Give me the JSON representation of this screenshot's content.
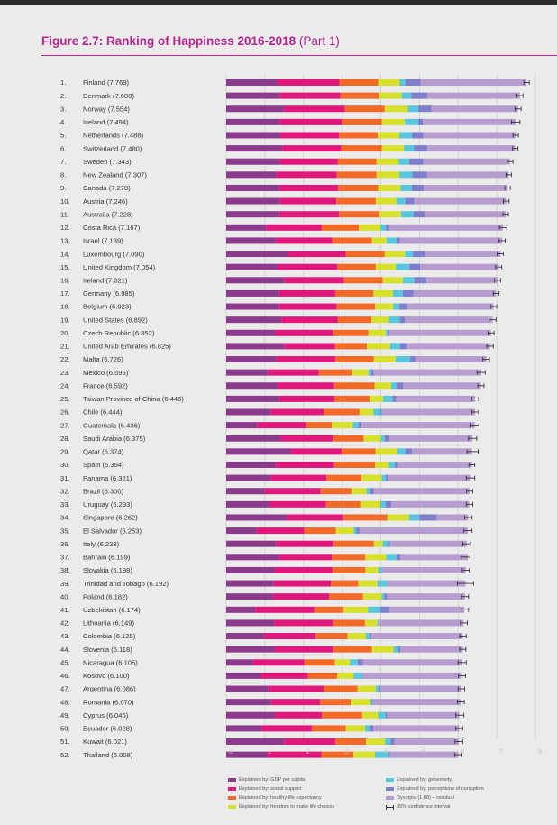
{
  "figure": {
    "title": "Figure 2.7: Ranking of Happiness 2016-2018",
    "part": "(Part 1)"
  },
  "colors": {
    "gdp": "#8c3a8c",
    "social": "#e0187c",
    "health": "#f36a28",
    "freedom": "#d7e02a",
    "generosity": "#58c7dd",
    "corruption": "#7e7ecc",
    "dystopia": "#b79ccf",
    "ci": "#333333",
    "gridline": "#cfcfcf",
    "title": "#b5268f"
  },
  "legend": [
    {
      "key": "gdp",
      "label": "Explained by: GDP per capita"
    },
    {
      "key": "social",
      "label": "Explained by: social support"
    },
    {
      "key": "health",
      "label": "Explained by: healthy life expectancy"
    },
    {
      "key": "freedom",
      "label": "Explained by: freedom to make life choices"
    },
    {
      "key": "generosity",
      "label": "Explained by: generosity"
    },
    {
      "key": "corruption",
      "label": "Explained by: perceptions of corruption"
    },
    {
      "key": "dystopia",
      "label": "Dystopia (1.88) + residual"
    },
    {
      "key": "ci",
      "label": "95% confidence interval"
    }
  ],
  "chart_data": {
    "type": "bar",
    "stacked": true,
    "orientation": "horizontal",
    "xlim": [
      0,
      8
    ],
    "xticks": [
      "0",
      "1",
      "2",
      "3",
      "4",
      "5",
      "6",
      "7",
      "8"
    ],
    "grid": true,
    "component_order": [
      "gdp",
      "social",
      "health",
      "freedom",
      "generosity",
      "corruption",
      "dystopia"
    ],
    "rows": [
      {
        "rank": "1.",
        "label": "Finland (7.769)",
        "score": 7.769,
        "parts": [
          1.34,
          1.59,
          1.0,
          0.56,
          0.15,
          0.39,
          2.74
        ],
        "ci": [
          7.7,
          7.84
        ]
      },
      {
        "rank": "2.",
        "label": "Denmark (7.600)",
        "score": 7.6,
        "parts": [
          1.38,
          1.57,
          1.0,
          0.59,
          0.25,
          0.41,
          2.4
        ],
        "ci": [
          7.52,
          7.68
        ]
      },
      {
        "rank": "3.",
        "label": "Norway (7.554)",
        "score": 7.554,
        "parts": [
          1.49,
          1.58,
          1.03,
          0.6,
          0.27,
          0.34,
          2.24
        ],
        "ci": [
          7.47,
          7.63
        ]
      },
      {
        "rank": "4.",
        "label": "Iceland (7.494)",
        "score": 7.494,
        "parts": [
          1.38,
          1.62,
          1.03,
          0.59,
          0.35,
          0.12,
          2.4
        ],
        "ci": [
          7.38,
          7.6
        ]
      },
      {
        "rank": "5.",
        "label": "Netherlands (7.488)",
        "score": 7.488,
        "parts": [
          1.4,
          1.52,
          1.0,
          0.56,
          0.32,
          0.3,
          2.39
        ],
        "ci": [
          7.42,
          7.56
        ]
      },
      {
        "rank": "6.",
        "label": "Switzerland (7.480)",
        "score": 7.48,
        "parts": [
          1.45,
          1.53,
          1.05,
          0.57,
          0.26,
          0.34,
          2.28
        ],
        "ci": [
          7.41,
          7.55
        ]
      },
      {
        "rank": "7.",
        "label": "Sweden (7.343)",
        "score": 7.343,
        "parts": [
          1.39,
          1.49,
          1.01,
          0.57,
          0.27,
          0.37,
          2.24
        ],
        "ci": [
          7.27,
          7.42
        ]
      },
      {
        "rank": "8.",
        "label": "New Zealand (7.307)",
        "score": 7.307,
        "parts": [
          1.3,
          1.56,
          1.03,
          0.59,
          0.33,
          0.38,
          2.12
        ],
        "ci": [
          7.24,
          7.38
        ]
      },
      {
        "rank": "9.",
        "label": "Canada (7.278)",
        "score": 7.278,
        "parts": [
          1.37,
          1.52,
          1.04,
          0.58,
          0.29,
          0.31,
          2.17
        ],
        "ci": [
          7.21,
          7.35
        ]
      },
      {
        "rank": "10.",
        "label": "Austria (7.246)",
        "score": 7.246,
        "parts": [
          1.38,
          1.47,
          1.02,
          0.53,
          0.24,
          0.23,
          2.37
        ],
        "ci": [
          7.17,
          7.32
        ]
      },
      {
        "rank": "11.",
        "label": "Australia (7.228)",
        "score": 7.228,
        "parts": [
          1.37,
          1.55,
          1.04,
          0.56,
          0.33,
          0.29,
          2.09
        ],
        "ci": [
          7.16,
          7.3
        ]
      },
      {
        "rank": "12.",
        "label": "Costa Rica (7.167)",
        "score": 7.167,
        "parts": [
          1.03,
          1.44,
          0.96,
          0.56,
          0.14,
          0.09,
          2.94
        ],
        "ci": [
          7.07,
          7.26
        ]
      },
      {
        "rank": "13.",
        "label": "Israel (7.139)",
        "score": 7.139,
        "parts": [
          1.28,
          1.46,
          1.03,
          0.38,
          0.26,
          0.08,
          2.65
        ],
        "ci": [
          7.06,
          7.22
        ]
      },
      {
        "rank": "14.",
        "label": "Luxembourg (7.090)",
        "score": 7.09,
        "parts": [
          1.61,
          1.48,
          1.01,
          0.53,
          0.2,
          0.32,
          1.95
        ],
        "ci": [
          7.01,
          7.17
        ]
      },
      {
        "rank": "15.",
        "label": "United Kingdom (7.054)",
        "score": 7.054,
        "parts": [
          1.33,
          1.54,
          1.0,
          0.52,
          0.35,
          0.28,
          2.03
        ],
        "ci": [
          6.97,
          7.13
        ]
      },
      {
        "rank": "16.",
        "label": "Ireland (7.021)",
        "score": 7.021,
        "parts": [
          1.5,
          1.55,
          1.0,
          0.52,
          0.3,
          0.31,
          1.85
        ],
        "ci": [
          6.94,
          7.1
        ]
      },
      {
        "rank": "17.",
        "label": "Germany (6.985)",
        "score": 6.985,
        "parts": [
          1.37,
          1.45,
          0.99,
          0.5,
          0.26,
          0.27,
          2.14
        ],
        "ci": [
          6.91,
          7.06
        ]
      },
      {
        "rank": "18.",
        "label": "Belgium (6.923)",
        "score": 6.923,
        "parts": [
          1.36,
          1.5,
          0.99,
          0.47,
          0.16,
          0.21,
          2.23
        ],
        "ci": [
          6.85,
          7.0
        ]
      },
      {
        "rank": "19.",
        "label": "United States (6.892)",
        "score": 6.892,
        "parts": [
          1.43,
          1.46,
          0.87,
          0.45,
          0.28,
          0.13,
          2.27
        ],
        "ci": [
          6.8,
          6.98
        ]
      },
      {
        "rank": "20.",
        "label": "Czech Republic (6.852)",
        "score": 6.852,
        "parts": [
          1.27,
          1.49,
          0.92,
          0.45,
          0.05,
          0.04,
          2.63
        ],
        "ci": [
          6.77,
          6.93
        ]
      },
      {
        "rank": "21.",
        "label": "United Arab Emirates (6.825)",
        "score": 6.825,
        "parts": [
          1.5,
          1.31,
          0.83,
          0.6,
          0.26,
          0.18,
          2.14
        ],
        "ci": [
          6.74,
          6.91
        ]
      },
      {
        "rank": "22.",
        "label": "Malta (6.726)",
        "score": 6.726,
        "parts": [
          1.3,
          1.52,
          1.0,
          0.56,
          0.38,
          0.15,
          1.82
        ],
        "ci": [
          6.64,
          6.81
        ]
      },
      {
        "rank": "23.",
        "label": "Mexico (6.595)",
        "score": 6.595,
        "parts": [
          1.07,
          1.32,
          0.86,
          0.43,
          0.07,
          0.07,
          2.78
        ],
        "ci": [
          6.49,
          6.7
        ]
      },
      {
        "rank": "24.",
        "label": "France (6.592)",
        "score": 6.592,
        "parts": [
          1.32,
          1.47,
          1.05,
          0.43,
          0.13,
          0.18,
          2.01
        ],
        "ci": [
          6.51,
          6.67
        ]
      },
      {
        "rank": "25.",
        "label": "Taiwan Province of China (6.446)",
        "score": 6.446,
        "parts": [
          1.37,
          1.43,
          0.91,
          0.35,
          0.24,
          0.1,
          2.04
        ],
        "ci": [
          6.36,
          6.53
        ]
      },
      {
        "rank": "26.",
        "label": "Chile (6.444)",
        "score": 6.444,
        "parts": [
          1.16,
          1.37,
          0.92,
          0.36,
          0.19,
          0.03,
          2.41
        ],
        "ci": [
          6.36,
          6.53
        ]
      },
      {
        "rank": "27.",
        "label": "Guatemala (6.436)",
        "score": 6.436,
        "parts": [
          0.8,
          1.27,
          0.66,
          0.54,
          0.15,
          0.08,
          2.93
        ],
        "ci": [
          6.33,
          6.54
        ]
      },
      {
        "rank": "28.",
        "label": "Saudi Arabia (6.375)",
        "score": 6.375,
        "parts": [
          1.4,
          1.36,
          0.8,
          0.44,
          0.1,
          0.12,
          2.15
        ],
        "ci": [
          6.27,
          6.48
        ]
      },
      {
        "rank": "29.",
        "label": "Qatar (6.374)",
        "score": 6.374,
        "parts": [
          1.68,
          1.31,
          0.87,
          0.56,
          0.22,
          0.17,
          1.55
        ],
        "ci": [
          6.23,
          6.52
        ]
      },
      {
        "rank": "30.",
        "label": "Spain (6.354)",
        "score": 6.354,
        "parts": [
          1.29,
          1.5,
          1.06,
          0.36,
          0.15,
          0.09,
          1.91
        ],
        "ci": [
          6.28,
          6.43
        ]
      },
      {
        "rank": "31.",
        "label": "Panama (6.321)",
        "score": 6.321,
        "parts": [
          1.15,
          1.44,
          0.91,
          0.52,
          0.11,
          0.06,
          2.14
        ],
        "ci": [
          6.21,
          6.43
        ]
      },
      {
        "rank": "32.",
        "label": "Brazil (6.300)",
        "score": 6.3,
        "parts": [
          1.0,
          1.44,
          0.8,
          0.39,
          0.1,
          0.09,
          2.48
        ],
        "ci": [
          6.22,
          6.38
        ]
      },
      {
        "rank": "33.",
        "label": "Uruguay (6.293)",
        "score": 6.293,
        "parts": [
          1.12,
          1.46,
          0.89,
          0.52,
          0.13,
          0.15,
          2.02
        ],
        "ci": [
          6.21,
          6.38
        ]
      },
      {
        "rank": "34.",
        "label": "Singapore (6.262)",
        "score": 6.262,
        "parts": [
          1.57,
          1.46,
          1.14,
          0.56,
          0.27,
          0.45,
          0.81
        ],
        "ci": [
          6.17,
          6.36
        ]
      },
      {
        "rank": "35.",
        "label": "El Salvador (6.253)",
        "score": 6.253,
        "parts": [
          0.79,
          1.23,
          0.82,
          0.46,
          0.07,
          0.07,
          2.81
        ],
        "ci": [
          6.15,
          6.36
        ]
      },
      {
        "rank": "36.",
        "label": "Italy (6.223)",
        "score": 6.223,
        "parts": [
          1.29,
          1.49,
          1.04,
          0.23,
          0.16,
          0.03,
          1.98
        ],
        "ci": [
          6.12,
          6.32
        ]
      },
      {
        "rank": "37.",
        "label": "Bahrain (6.199)",
        "score": 6.199,
        "parts": [
          1.36,
          1.37,
          0.87,
          0.54,
          0.26,
          0.11,
          1.74
        ],
        "ci": [
          6.08,
          6.31
        ]
      },
      {
        "rank": "38.",
        "label": "Slovakia (6.198)",
        "score": 6.198,
        "parts": [
          1.25,
          1.5,
          0.85,
          0.33,
          0.09,
          0.01,
          2.17
        ],
        "ci": [
          6.11,
          6.29
        ]
      },
      {
        "rank": "39.",
        "label": "Trinidad and Tobago (6.192)",
        "score": 6.192,
        "parts": [
          1.23,
          1.48,
          0.71,
          0.49,
          0.26,
          0.01,
          2.01
        ],
        "ci": [
          5.98,
          6.4
        ]
      },
      {
        "rank": "40.",
        "label": "Poland (6.182)",
        "score": 6.182,
        "parts": [
          1.21,
          1.45,
          0.88,
          0.48,
          0.07,
          0.07,
          2.02
        ],
        "ci": [
          6.09,
          6.27
        ]
      },
      {
        "rank": "41.",
        "label": "Uzbekistan (6.174)",
        "score": 6.174,
        "parts": [
          0.75,
          1.53,
          0.76,
          0.63,
          0.32,
          0.24,
          1.93
        ],
        "ci": [
          6.08,
          6.27
        ]
      },
      {
        "rank": "42.",
        "label": "Lithuania (6.149)",
        "score": 6.149,
        "parts": [
          1.24,
          1.53,
          0.82,
          0.32,
          0.03,
          0.03,
          2.17
        ],
        "ci": [
          6.06,
          6.24
        ]
      },
      {
        "rank": "43.",
        "label": "Colombia (6.125)",
        "score": 6.125,
        "parts": [
          0.98,
          1.33,
          0.83,
          0.47,
          0.1,
          0.05,
          2.36
        ],
        "ci": [
          6.04,
          6.21
        ]
      },
      {
        "rank": "44.",
        "label": "Slovenia (6.118)",
        "score": 6.118,
        "parts": [
          1.26,
          1.51,
          1.0,
          0.56,
          0.12,
          0.06,
          1.61
        ],
        "ci": [
          6.04,
          6.2
        ]
      },
      {
        "rank": "45.",
        "label": "Nicaragua (6.105)",
        "score": 6.105,
        "parts": [
          0.69,
          1.33,
          0.79,
          0.39,
          0.2,
          0.14,
          2.57
        ],
        "ci": [
          6.0,
          6.21
        ]
      },
      {
        "rank": "46.",
        "label": "Kosovo (6.100)",
        "score": 6.1,
        "parts": [
          0.88,
          1.23,
          0.76,
          0.43,
          0.21,
          0.01,
          2.58
        ],
        "ci": [
          6.01,
          6.19
        ]
      },
      {
        "rank": "47.",
        "label": "Argentina (6.086)",
        "score": 6.086,
        "parts": [
          1.09,
          1.43,
          0.88,
          0.47,
          0.07,
          0.05,
          2.1
        ],
        "ci": [
          6.0,
          6.17
        ]
      },
      {
        "rank": "48.",
        "label": "Romania (6.070)",
        "score": 6.07,
        "parts": [
          1.16,
          1.27,
          0.79,
          0.51,
          0.05,
          0.01,
          2.28
        ],
        "ci": [
          5.98,
          6.16
        ]
      },
      {
        "rank": "49.",
        "label": "Cyprus (6.046)",
        "score": 6.046,
        "parts": [
          1.26,
          1.22,
          1.04,
          0.41,
          0.19,
          0.04,
          1.87
        ],
        "ci": [
          5.94,
          6.15
        ]
      },
      {
        "rank": "50.",
        "label": "Ecuador (6.028)",
        "score": 6.028,
        "parts": [
          0.91,
          1.31,
          0.87,
          0.5,
          0.13,
          0.09,
          2.22
        ],
        "ci": [
          5.94,
          6.12
        ]
      },
      {
        "rank": "51.",
        "label": "Kuwait (6.021)",
        "score": 6.021,
        "parts": [
          1.5,
          1.32,
          0.8,
          0.49,
          0.14,
          0.1,
          1.67
        ],
        "ci": [
          5.92,
          6.12
        ]
      },
      {
        "rank": "52.",
        "label": "Thailand (6.008)",
        "score": 6.008,
        "parts": [
          1.05,
          1.41,
          0.83,
          0.56,
          0.36,
          0.03,
          1.77
        ],
        "ci": [
          5.91,
          6.1
        ]
      }
    ]
  }
}
